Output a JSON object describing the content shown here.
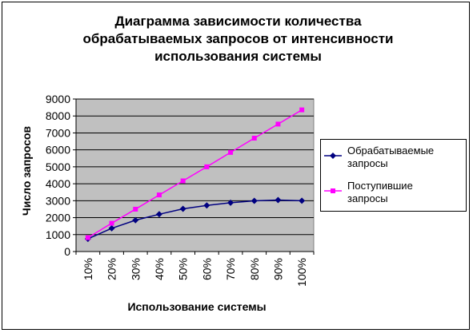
{
  "chart_data": {
    "type": "line",
    "title": "Диаграмма зависимости количества обрабатываемых запросов от интенсивности использования системы",
    "title_lines": [
      "Диаграмма зависимости количества",
      "обрабатываемых запросов от интенсивности",
      "использования системы"
    ],
    "xlabel": "Использование системы",
    "ylabel": "Число запросов",
    "categories": [
      "10%",
      "20%",
      "30%",
      "40%",
      "50%",
      "60%",
      "70%",
      "80%",
      "90%",
      "100%"
    ],
    "ylim": [
      0,
      9000
    ],
    "yticks": [
      0,
      1000,
      2000,
      3000,
      4000,
      5000,
      6000,
      7000,
      8000,
      9000
    ],
    "grid": true,
    "legend": "right",
    "plot_background": "#c0c0c0",
    "series": [
      {
        "name": "Обрабатываемые запросы",
        "legend_lines": [
          "Обрабатываемые",
          "запросы"
        ],
        "color": "#000080",
        "marker": "diamond",
        "values": [
          750,
          1370,
          1850,
          2200,
          2520,
          2720,
          2880,
          2990,
          3040,
          3000
        ]
      },
      {
        "name": "Поступившие запросы",
        "legend_lines": [
          "Поступившие",
          "запросы"
        ],
        "color": "#ff00ff",
        "marker": "square",
        "values": [
          820,
          1670,
          2500,
          3340,
          4170,
          5000,
          5850,
          6690,
          7520,
          8360
        ]
      }
    ]
  }
}
